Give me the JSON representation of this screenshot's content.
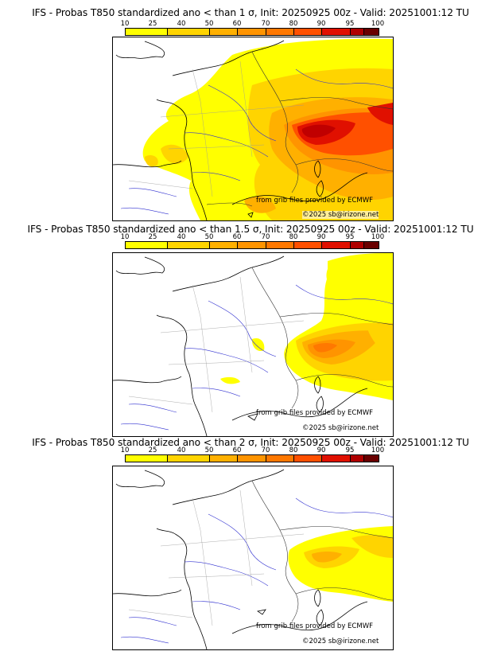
{
  "colorbar": {
    "ticks": [
      "10",
      "25",
      "40",
      "50",
      "60",
      "70",
      "80",
      "90",
      "95",
      "100"
    ],
    "colors": [
      "#ffff00",
      "#ffd400",
      "#ffb000",
      "#ff9400",
      "#ff7800",
      "#ff5000",
      "#e01000",
      "#b00000",
      "#6a0000"
    ]
  },
  "panels": [
    {
      "title": "IFS - Probas T850  standardized ano < than 1 σ, Init: 20250925 00z - Valid: 20251001:12 TU",
      "credit": "from grib files provided by ECMWF",
      "copyright": "©2025 sb@irizone.net"
    },
    {
      "title": "IFS - Probas T850  standardized ano < than 1.5 σ, Init: 20250925 00z - Valid: 20251001:12 TU",
      "credit": "from grib files provided by ECMWF",
      "copyright": "©2025 sb@irizone.net"
    },
    {
      "title": "IFS - Probas T850  standardized ano < than 2 σ, Init: 20250925 00z - Valid: 20251001:12 TU",
      "credit": "from grib files provided by ECMWF",
      "copyright": "©2025 sb@irizone.net"
    }
  ]
}
